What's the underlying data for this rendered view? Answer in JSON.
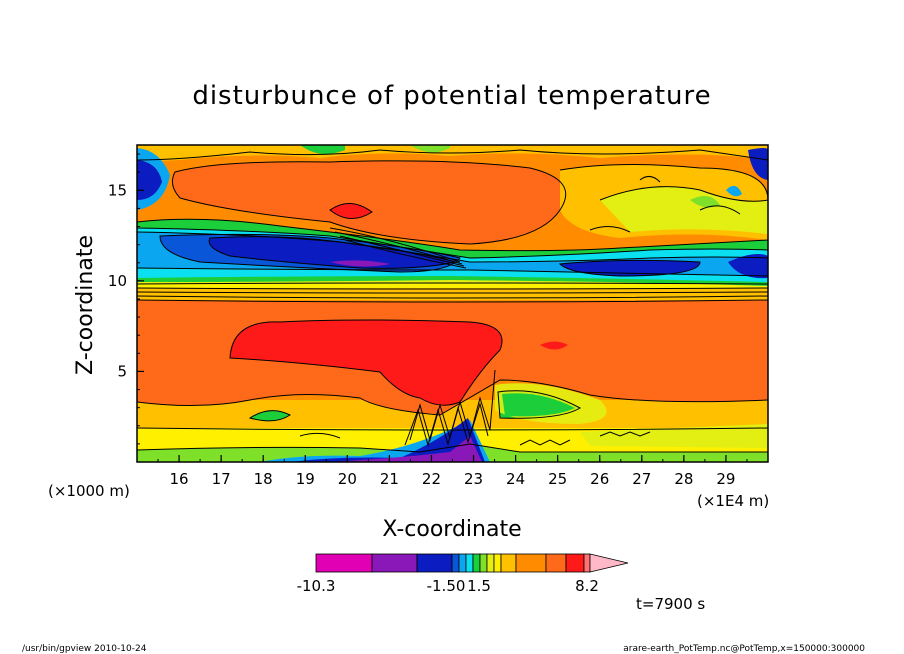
{
  "chart_data": {
    "type": "heatmap",
    "title": "disturbunce of potential temperature",
    "xlabel": "X-coordinate",
    "ylabel": "Z-coordinate",
    "x_unit_left": "(×1000 m)",
    "x_unit_right": "(×1E4 m)",
    "xlim": [
      15.0,
      30.0
    ],
    "ylim": [
      0.0,
      17.5
    ],
    "xticks": [
      16,
      17,
      18,
      19,
      20,
      21,
      22,
      23,
      24,
      25,
      26,
      27,
      28,
      29
    ],
    "yticks": [
      5,
      10,
      15
    ],
    "colorbar": {
      "labels": [
        "-10.3",
        "-1.50",
        "1.5",
        "8.2"
      ],
      "colors": [
        "#e200b4",
        "#8a17b7",
        "#0b1cc0",
        "#0a56d8",
        "#0aa7f0",
        "#0ae0f0",
        "#1ccf3a",
        "#7fe02a",
        "#e3ef12",
        "#fff000",
        "#ffc000",
        "#ff8c00",
        "#ff6a1a",
        "#ff1a1a",
        "#ff7272",
        "#ffb8c8"
      ]
    },
    "time_label": "t=7900 s",
    "footer_left": "/usr/bin/gpview   2010-10-24",
    "footer_right": "arare-earth_PotTemp.nc@PotTemp,x=150000:300000"
  }
}
